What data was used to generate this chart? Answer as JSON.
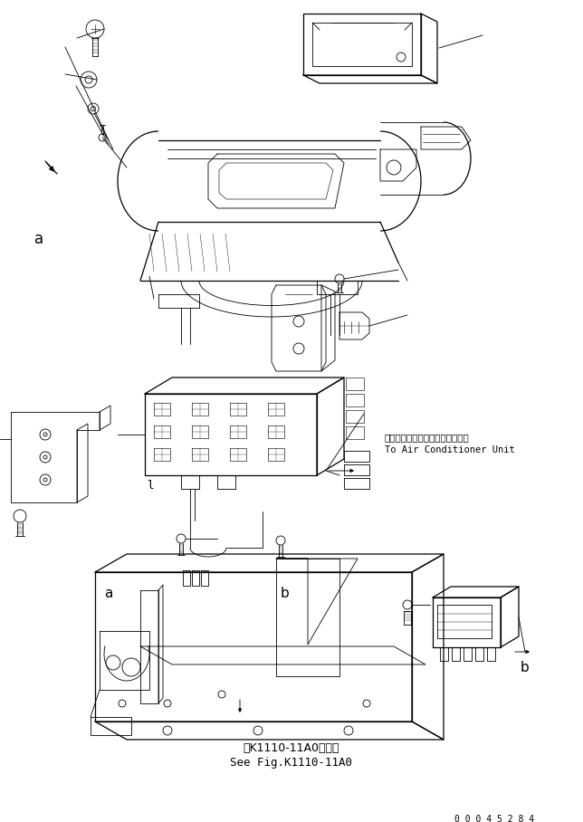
{
  "bg_color": "#ffffff",
  "line_color": "#000000",
  "fig_width": 6.44,
  "fig_height": 9.08,
  "dpi": 100,
  "annotation_japanese": "エアーコンディショナユニットへ",
  "annotation_english": "To Air Conditioner Unit",
  "bottom_japanese": "第K1110-11A0図参照",
  "bottom_english": "See Fig.K1110-11A0",
  "serial_number": "0 0 0 4 5 2 8 4",
  "label_a1": "a",
  "label_a2": "a",
  "label_b1": "b",
  "label_b2": "b",
  "label_l": "l",
  "lw_thin": 0.6,
  "lw_med": 0.9,
  "lw_thick": 1.3
}
